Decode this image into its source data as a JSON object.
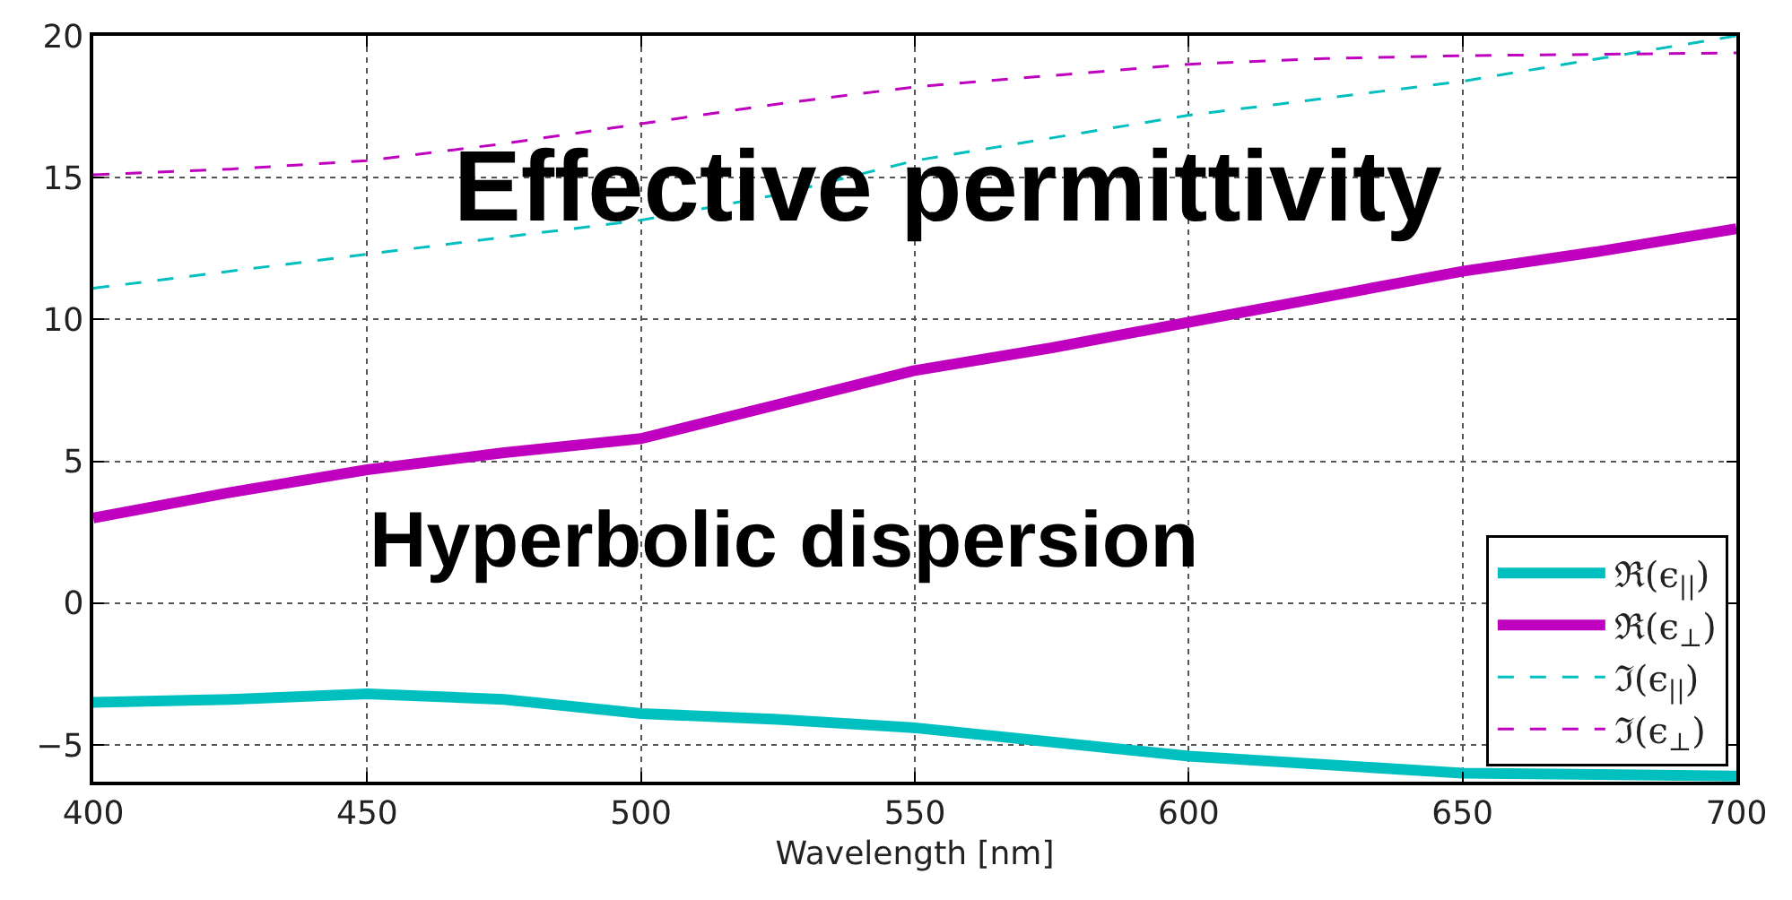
{
  "chart_data": {
    "type": "line",
    "xlabel": "Wavelength [nm]",
    "annotations": [
      "Effective permittivity",
      "Hyperbolic dispersion"
    ],
    "x": [
      400,
      425,
      450,
      475,
      500,
      525,
      550,
      575,
      600,
      625,
      650,
      675,
      700
    ],
    "series": [
      {
        "name": "ℜ(ϵ$_{||}$)",
        "color": "#00bfbf",
        "line_style": "solid",
        "values": [
          -3.5,
          -3.4,
          -3.2,
          -3.4,
          -3.9,
          -4.1,
          -4.4,
          -4.9,
          -5.4,
          -5.7,
          -6.0,
          -6.05,
          -6.1
        ]
      },
      {
        "name": "ℜ(ϵ$_{⊥}$)",
        "color": "#bf00bf",
        "line_style": "solid",
        "values": [
          3.0,
          3.9,
          4.7,
          5.3,
          5.8,
          7.0,
          8.2,
          9.0,
          9.9,
          10.8,
          11.7,
          12.4,
          13.2
        ]
      },
      {
        "name": "ℑ(ϵ$_{||}$)",
        "color": "#00bfbf",
        "line_style": "dashed",
        "values": [
          11.1,
          11.7,
          12.3,
          12.9,
          13.5,
          14.4,
          15.6,
          16.4,
          17.2,
          17.8,
          18.4,
          19.2,
          20.0
        ]
      },
      {
        "name": "ℑ(ϵ$_{⊥}$)",
        "color": "#bf00bf",
        "line_style": "dashed",
        "values": [
          15.1,
          15.3,
          15.6,
          16.2,
          16.9,
          17.6,
          18.2,
          18.6,
          19.0,
          19.2,
          19.3,
          19.35,
          19.4
        ]
      }
    ],
    "xlim": [
      400,
      700
    ],
    "xticks": [
      400,
      450,
      500,
      550,
      600,
      650,
      700
    ],
    "ylim": [
      -6.3,
      20
    ],
    "yticks": [
      {
        "value": -5,
        "label": "−5"
      },
      0,
      5,
      10,
      15,
      20
    ],
    "grid": true,
    "legend": "bottom right",
    "marker": "none"
  }
}
